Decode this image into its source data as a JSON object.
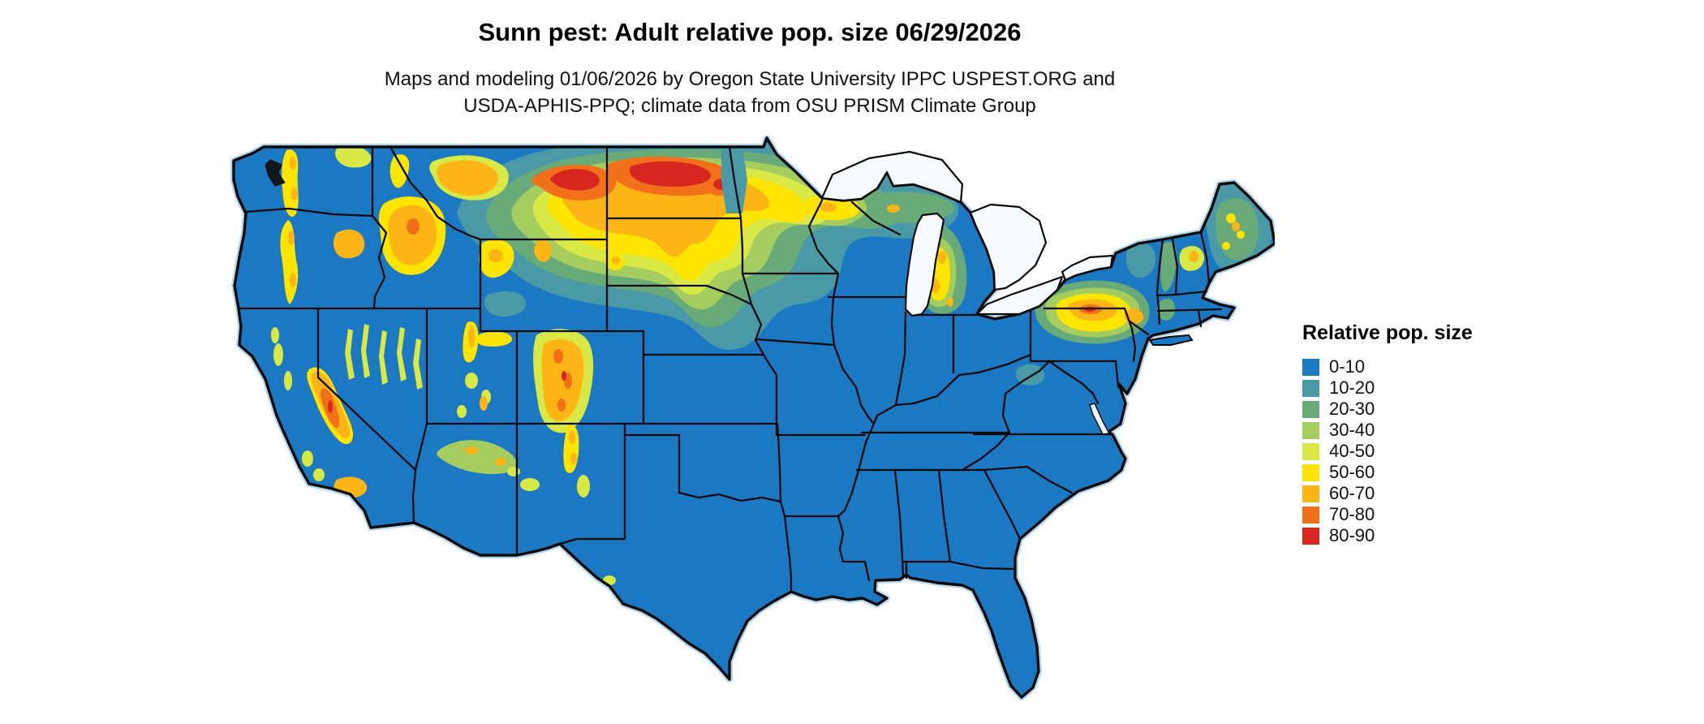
{
  "page": {
    "background": "#ffffff"
  },
  "header": {
    "title": "Sunn pest: Adult relative pop. size 06/29/2026",
    "subtitle_line1": "Maps and modeling 01/06/2026 by Oregon State University IPPC USPEST.ORG and",
    "subtitle_line2": "USDA-APHIS-PPQ; climate data from OSU PRISM Climate Group"
  },
  "legend": {
    "title": "Relative pop. size",
    "items": [
      {
        "label": "0-10",
        "color": "#1b79c4"
      },
      {
        "label": "10-20",
        "color": "#4a99a7"
      },
      {
        "label": "20-30",
        "color": "#68ab79"
      },
      {
        "label": "30-40",
        "color": "#a4cc5e"
      },
      {
        "label": "40-50",
        "color": "#d8e845"
      },
      {
        "label": "50-60",
        "color": "#ffe400"
      },
      {
        "label": "60-70",
        "color": "#fdb515"
      },
      {
        "label": "70-80",
        "color": "#f3701b"
      },
      {
        "label": "80-90",
        "color": "#d7261f"
      }
    ]
  },
  "map": {
    "region": "Contiguous United States",
    "base_color": "#1b79c4",
    "ocean_color": "#ffffff",
    "border_color": "#0a0a0a",
    "summary": "Choropleth raster: highest relative population (orange-red) across northern Montana and North Dakota, western mountain ranges (Cascades, Sierra Nevada, Idaho and Colorado Rockies, Wasatch), northern Wisconsin and Michigan, and the Pennsylvania-New York Appalachians and New England uplands; lowest values (blue) across the South, central Plains and coastal lowlands."
  }
}
